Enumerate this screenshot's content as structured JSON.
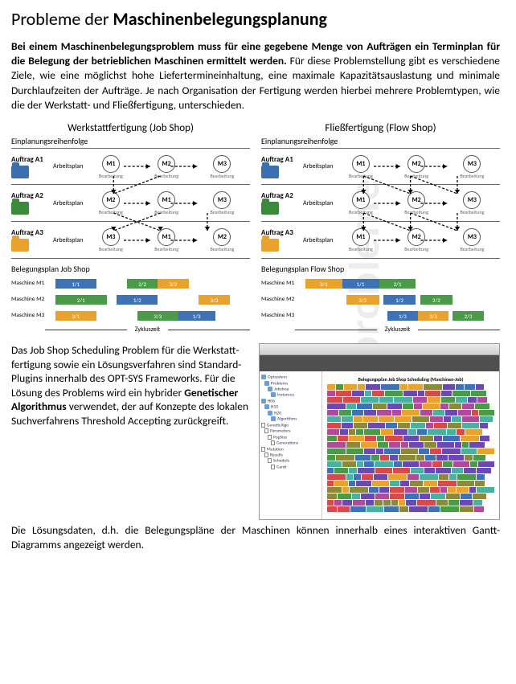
{
  "watermark": "Beispielprobleme",
  "heading": {
    "pre": "Probleme der ",
    "bold": "Maschinenbelegungsplanung"
  },
  "intro": {
    "bold": "Bei einem Maschinenbelegungsproblem muss für eine gegebene Menge von Aufträgen ein Terminplan für die Belegung der betrieb­lichen Maschinen ermittelt werden.",
    "rest": " Für diese Problemstellung gibt es verschiedene Ziele, wie eine möglichst hohe Liefertermineinhaltung, eine maximale Kapazitätsauslastung und minimale Durchlaufzeiten der Auf­träge. Je nach Organisation der Fertigung werden hierbei mehrere Problem­typen, wie die der Werkstatt- und Fließfertigung, unterschieden."
  },
  "colors": {
    "blue": "#3a6fb0",
    "green": "#3b8a3b",
    "orange": "#e8a22e",
    "blueBar": "#3e72b4",
    "greenBar": "#4a9a4a",
    "orangeBar": "#e8a22e",
    "node": "#555555",
    "grid": "#666666"
  },
  "diagrams": {
    "left": {
      "title": "Werkstattfertigung (Job Shop)",
      "sub": "Einplanungsreihenfolge",
      "orders": [
        {
          "label": "Auftrag A1",
          "color": "#3a6fb0",
          "plan": "Arbeitsplan",
          "seq": [
            "M1",
            "M2",
            "M3"
          ]
        },
        {
          "label": "Auftrag A2",
          "color": "#3b8a3b",
          "plan": "Arbeitsplan",
          "seq": [
            "M2",
            "M1",
            "M3"
          ]
        },
        {
          "label": "Auftrag A3",
          "color": "#e8a22e",
          "plan": "Arbeitsplan",
          "seq": [
            "M3",
            "M1",
            "M2"
          ]
        }
      ],
      "nodeSubs": [
        "Bearbeitung",
        "Bearbeitung",
        "Bearbeitung"
      ],
      "ganttTitle": "Belegungsplan Job Shop",
      "gantt": [
        {
          "label": "Maschine M1",
          "blocks": [
            {
              "c": "#3e72b4",
              "l": 5,
              "w": 20,
              "t": "1/1"
            },
            {
              "c": "#4a9a4a",
              "l": 40,
              "w": 15,
              "t": "2/2"
            },
            {
              "c": "#e8a22e",
              "l": 55,
              "w": 15,
              "t": "3/2"
            }
          ]
        },
        {
          "label": "Maschine M2",
          "blocks": [
            {
              "c": "#4a9a4a",
              "l": 5,
              "w": 25,
              "t": "2/1"
            },
            {
              "c": "#3e72b4",
              "l": 35,
              "w": 20,
              "t": "1/2"
            },
            {
              "c": "#e8a22e",
              "l": 75,
              "w": 15,
              "t": "3/3"
            }
          ]
        },
        {
          "label": "Maschine M3",
          "blocks": [
            {
              "c": "#e8a22e",
              "l": 5,
              "w": 20,
              "t": "3/1"
            },
            {
              "c": "#4a9a4a",
              "l": 45,
              "w": 20,
              "t": "2/3"
            },
            {
              "c": "#3e72b4",
              "l": 65,
              "w": 18,
              "t": "1/3"
            }
          ]
        }
      ],
      "axis": "Zykluszeit"
    },
    "right": {
      "title": "Fließfertigung (Flow Shop)",
      "sub": "Einplanungsreihenfolge",
      "orders": [
        {
          "label": "Auftrag A1",
          "color": "#3a6fb0",
          "plan": "Arbeitsplan",
          "seq": [
            "M1",
            "M2",
            "M3"
          ]
        },
        {
          "label": "Auftrag A2",
          "color": "#3b8a3b",
          "plan": "Arbeitsplan",
          "seq": [
            "M1",
            "M2",
            "M3"
          ]
        },
        {
          "label": "Auftrag A3",
          "color": "#e8a22e",
          "plan": "Arbeitsplan",
          "seq": [
            "M1",
            "M2",
            "M3"
          ]
        }
      ],
      "nodeSubs": [
        "Bearbeitung",
        "Bearbeitung",
        "Bearbeitung"
      ],
      "ganttTitle": "Belegungsplan Flow Shop",
      "gantt": [
        {
          "label": "Maschine M1",
          "blocks": [
            {
              "c": "#e8a22e",
              "l": 5,
              "w": 18,
              "t": "3/1"
            },
            {
              "c": "#3e72b4",
              "l": 23,
              "w": 18,
              "t": "1/1"
            },
            {
              "c": "#4a9a4a",
              "l": 41,
              "w": 18,
              "t": "2/1"
            }
          ]
        },
        {
          "label": "Maschine M2",
          "blocks": [
            {
              "c": "#e8a22e",
              "l": 25,
              "w": 16,
              "t": "3/2"
            },
            {
              "c": "#3e72b4",
              "l": 43,
              "w": 16,
              "t": "1/2"
            },
            {
              "c": "#4a9a4a",
              "l": 61,
              "w": 16,
              "t": "2/2"
            }
          ]
        },
        {
          "label": "Maschine M3",
          "blocks": [
            {
              "c": "#3e72b4",
              "l": 45,
              "w": 15,
              "t": "1/3"
            },
            {
              "c": "#e8a22e",
              "l": 60,
              "w": 15,
              "t": "3/3"
            },
            {
              "c": "#4a9a4a",
              "l": 77,
              "w": 15,
              "t": "2/3"
            }
          ]
        }
      ],
      "axis": "Zykluszeit"
    }
  },
  "bottomText": {
    "p1a": "Das Job Shop Scheduling Problem für die Werkstatt­fertigung sowie ein Lösungs­verfahren sind Standard-Plugins innerhalb des OPT-SYS Frameworks. Für die Lösung des Problems wird ein hybrider ",
    "p1b": "Genetischer Algorithmus",
    "p1c": " verwendet, der auf Konzepte des lokalen Suchverfahrens Threshold Accepting zurückgreift."
  },
  "finalPara": "Die Lösungsdaten, d.h. die Belegungspläne der Maschinen können inner­halb eines interaktiven Gantt-Diagramms angezeigt werden.",
  "screenshot": {
    "chartTitle": "Belegungsplan Job Shop Scheduling (Maschinen-Job)",
    "treeItems": [
      "Optsystem",
      "Problems",
      "Jobshop",
      "Instances",
      "ft06",
      "ft10",
      "ft20",
      "Algorithms",
      "GeneticAlgo",
      "Parameters",
      "PopSize",
      "Generations",
      "Mutation",
      "Results",
      "Schedule",
      "Gantt"
    ],
    "palette": [
      "#4a9a4a",
      "#e8a22e",
      "#3e72b4",
      "#b04a9a",
      "#d84a4a",
      "#4ab0a0",
      "#8a8a3a",
      "#6a4ab0"
    ]
  }
}
